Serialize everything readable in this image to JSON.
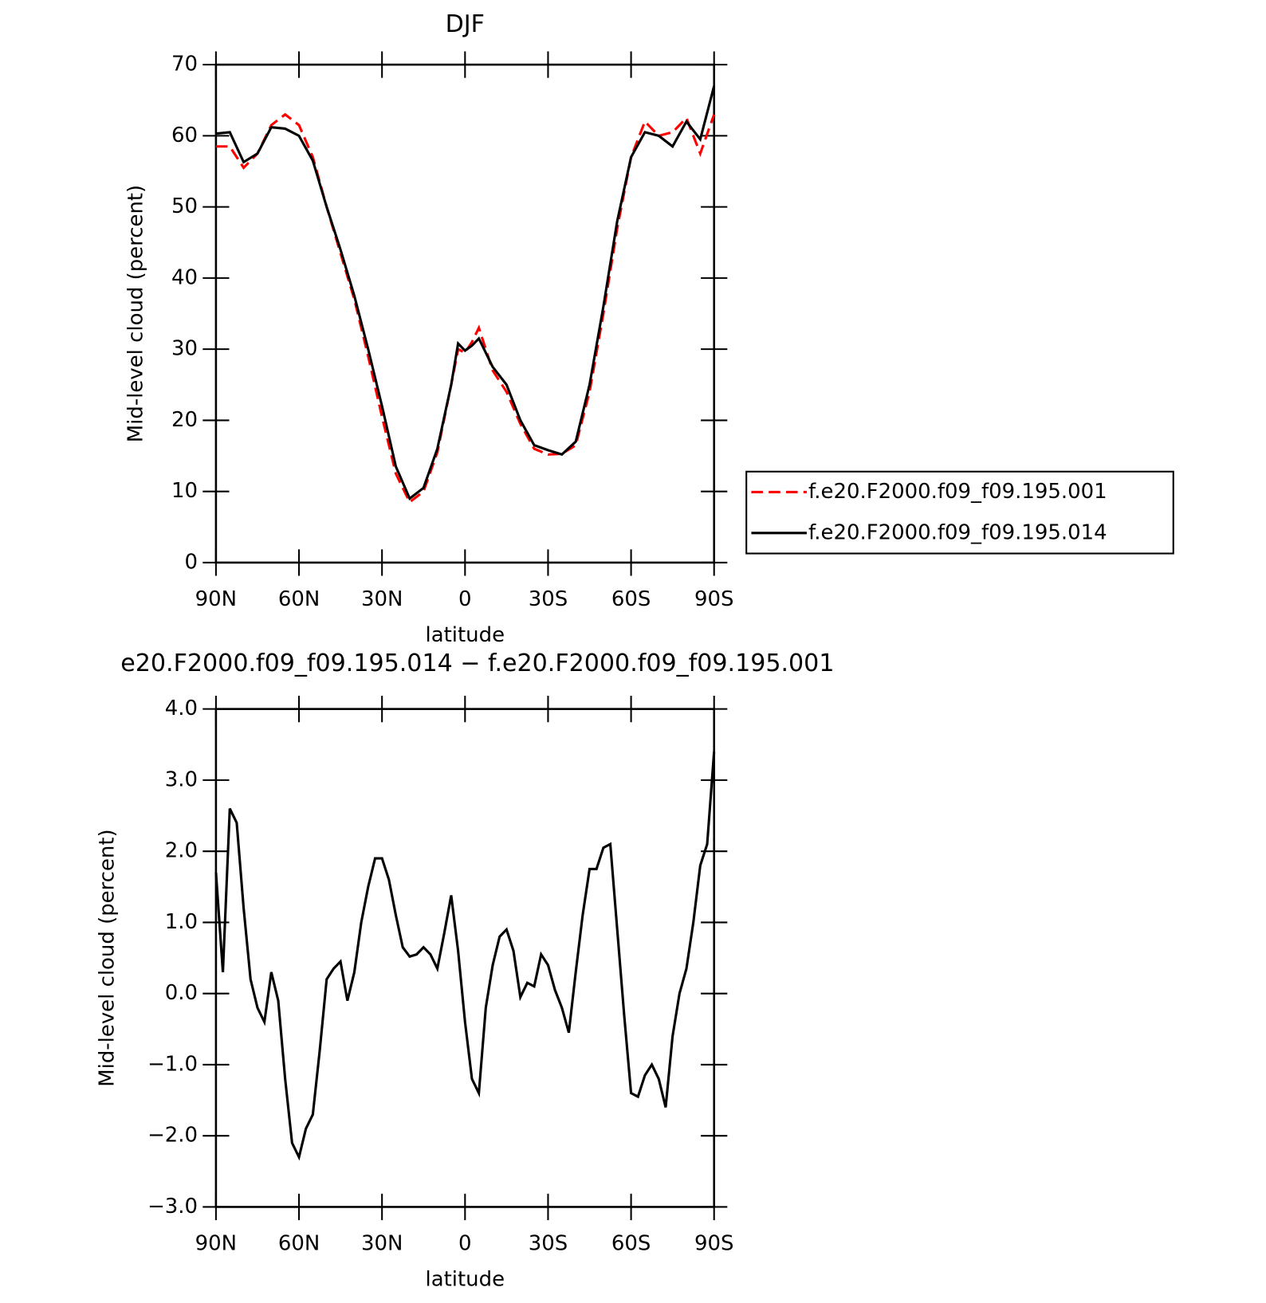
{
  "chart_data": [
    {
      "type": "line",
      "title": "DJF",
      "xlabel": "latitude",
      "ylabel": "Mid-level cloud (percent)",
      "x": [
        90,
        85,
        80,
        75,
        70,
        65,
        60,
        55,
        50,
        45,
        40,
        35,
        30,
        25,
        20,
        15,
        10,
        5,
        2.5,
        0,
        -2.5,
        -5,
        -10,
        -15,
        -20,
        -25,
        -30,
        -35,
        -40,
        -45,
        -50,
        -55,
        -60,
        -65,
        -70,
        -75,
        -80,
        -85,
        -90
      ],
      "series": [
        {
          "name": "f.e20.F2000.f09_f09.195.001",
          "color": "#ff0000",
          "linestyle": "dashed",
          "values": [
            58.5,
            58.5,
            55.5,
            57.5,
            61.5,
            63,
            61.5,
            57,
            50,
            43.5,
            37,
            29,
            20.5,
            12.5,
            8.5,
            10,
            15.5,
            25,
            30,
            29.5,
            31,
            33,
            27,
            24,
            19.5,
            16,
            15.2,
            15.3,
            16.5,
            24,
            35,
            47,
            57,
            62,
            60,
            60.5,
            62.5,
            57.5,
            63
          ]
        },
        {
          "name": "f.e20.F2000.f09_f09.195.014",
          "color": "#000000",
          "linestyle": "solid",
          "values": [
            60.3,
            60.5,
            56.3,
            57.5,
            61.2,
            61,
            60,
            56.5,
            50,
            44,
            37.5,
            30,
            22,
            13.5,
            9,
            10.5,
            16,
            25,
            30.8,
            29.8,
            30.5,
            31.5,
            27.5,
            25,
            20,
            16.5,
            15.8,
            15.2,
            17,
            25,
            36,
            48,
            57,
            60.5,
            60,
            58.5,
            62,
            59.5,
            67
          ]
        }
      ],
      "xlim": [
        90,
        -90
      ],
      "xticks": [
        {
          "value": 90,
          "label": "90N"
        },
        {
          "value": 60,
          "label": "60N"
        },
        {
          "value": 30,
          "label": "30N"
        },
        0,
        {
          "value": -30,
          "label": "30S"
        },
        {
          "value": -60,
          "label": "60S"
        },
        {
          "value": -90,
          "label": "90S"
        }
      ],
      "ylim": [
        0,
        70
      ],
      "yticks": [
        0,
        10,
        20,
        30,
        40,
        50,
        60,
        70
      ],
      "legend": "right"
    },
    {
      "type": "line",
      "title": "e20.F2000.f09_f09.195.014 − f.e20.F2000.f09_f09.195.001",
      "xlabel": "latitude",
      "ylabel": "Mid-level cloud (percent)",
      "x": [
        90,
        87.5,
        85,
        82.5,
        80,
        77.5,
        75,
        72.5,
        70,
        67.5,
        65,
        62.5,
        60,
        57.5,
        55,
        52.5,
        50,
        47.5,
        45,
        42.5,
        40,
        37.5,
        35,
        32.5,
        30,
        27.5,
        25,
        22.5,
        20,
        17.5,
        15,
        12.5,
        10,
        7.5,
        5,
        2.5,
        0,
        -2.5,
        -5,
        -7.5,
        -10,
        -12.5,
        -15,
        -17.5,
        -20,
        -22.5,
        -25,
        -27.5,
        -30,
        -32.5,
        -35,
        -37.5,
        -40,
        -42.5,
        -45,
        -47.5,
        -50,
        -52.5,
        -55,
        -57.5,
        -60,
        -62.5,
        -65,
        -67.5,
        -70,
        -72.5,
        -75,
        -77.5,
        -80,
        -82.5,
        -85,
        -87.5,
        -90
      ],
      "series": [
        {
          "color": "#000000",
          "linestyle": "solid",
          "values": [
            1.7,
            0.3,
            2.6,
            2.4,
            1.2,
            0.2,
            -0.2,
            -0.4,
            0.3,
            -0.1,
            -1.2,
            -2.1,
            -2.3,
            -1.9,
            -1.7,
            -0.8,
            0.2,
            0.35,
            0.45,
            -0.1,
            0.3,
            1.0,
            1.5,
            1.9,
            1.9,
            1.6,
            1.1,
            0.65,
            0.52,
            0.55,
            0.65,
            0.55,
            0.35,
            0.85,
            1.38,
            0.6,
            -0.4,
            -1.2,
            -1.4,
            -0.2,
            0.4,
            0.8,
            0.9,
            0.6,
            -0.05,
            0.15,
            0.1,
            0.55,
            0.4,
            0.05,
            -0.2,
            -0.55,
            0.3,
            1.1,
            1.75,
            1.75,
            2.05,
            2.1,
            0.9,
            -0.3,
            -1.4,
            -1.45,
            -1.15,
            -1.0,
            -1.2,
            -1.6,
            -0.6,
            0.0,
            0.35,
            1.0,
            1.8,
            2.1,
            3.4
          ]
        }
      ],
      "xlim": [
        90,
        -90
      ],
      "xticks": [
        {
          "value": 90,
          "label": "90N"
        },
        {
          "value": 60,
          "label": "60N"
        },
        {
          "value": 30,
          "label": "30N"
        },
        0,
        {
          "value": -30,
          "label": "30S"
        },
        {
          "value": -60,
          "label": "60S"
        },
        {
          "value": -90,
          "label": "90S"
        }
      ],
      "ylim": [
        -3,
        4
      ],
      "yticks": [
        {
          "value": -3,
          "label": "−3.0"
        },
        {
          "value": -2,
          "label": "−2.0"
        },
        {
          "value": -1,
          "label": "−1.0"
        },
        {
          "value": 0,
          "label": "0.0"
        },
        {
          "value": 1,
          "label": "1.0"
        },
        {
          "value": 2,
          "label": "2.0"
        },
        {
          "value": 3,
          "label": "3.0"
        },
        {
          "value": 4,
          "label": "4.0"
        }
      ]
    }
  ]
}
